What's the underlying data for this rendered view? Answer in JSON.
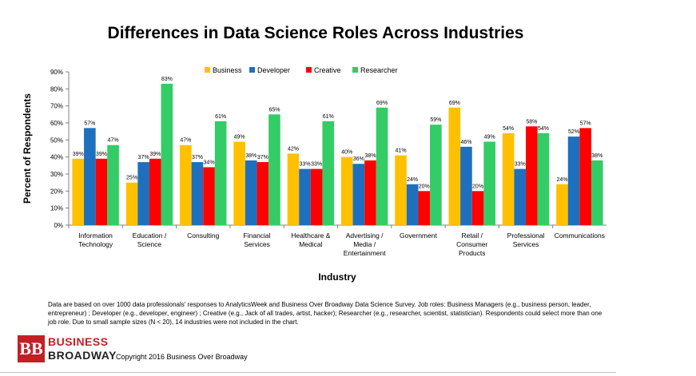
{
  "chart_data": {
    "type": "bar",
    "title": "Differences in Data Science Roles Across Industries",
    "xlabel": "Industry",
    "ylabel": "Percent of Respondents",
    "ylim": [
      0,
      90
    ],
    "yticks": [
      "0%",
      "10%",
      "20%",
      "30%",
      "40%",
      "50%",
      "60%",
      "70%",
      "80%",
      "90%"
    ],
    "legend_position": "top",
    "categories": [
      [
        "Information",
        "Technology"
      ],
      [
        "Education /",
        "Science"
      ],
      [
        "Consulting"
      ],
      [
        "Financial",
        "Services"
      ],
      [
        "Healthcare &",
        "Medical"
      ],
      [
        "Advertising /",
        "Media /",
        "Entertainment"
      ],
      [
        "Government"
      ],
      [
        "Retail /",
        "Consumer",
        "Products"
      ],
      [
        "Professional",
        "Services"
      ],
      [
        "Communications"
      ]
    ],
    "series": [
      {
        "name": "Business",
        "color": "#ffc000",
        "values": [
          39,
          25,
          47,
          49,
          42,
          40,
          41,
          69,
          54,
          24
        ]
      },
      {
        "name": "Developer",
        "color": "#1f6fbf",
        "values": [
          57,
          37,
          37,
          38,
          33,
          36,
          24,
          46,
          33,
          52
        ]
      },
      {
        "name": "Creative",
        "color": "#ff0000",
        "values": [
          39,
          39,
          34,
          37,
          33,
          38,
          20,
          20,
          58,
          57
        ]
      },
      {
        "name": "Researcher",
        "color": "#33cc66",
        "values": [
          47,
          83,
          61,
          65,
          61,
          69,
          59,
          49,
          54,
          38
        ]
      }
    ]
  },
  "footnote": {
    "text": "Data are based on over 1000 data professionals' responses to AnalyticsWeek and Business Over Broadway Data Science Survey. Job roles: Business Managers (e.g., business person, leader, entrepreneur) ; Developer (e.g., developer, engineer) ; Creative (e.g., Jack of all trades, artist, hacker); Researcher (e.g., researcher, scientist, statistician). Respondents could select more than one job role.  Due to small sample sizes (N < 20), 14 industries were not included in the chart."
  },
  "logo": {
    "mark": "BB",
    "line1": "BUSINESS",
    "line2": "BROADWAY"
  },
  "copyright": "Copyright 2016 Business Over Broadway"
}
